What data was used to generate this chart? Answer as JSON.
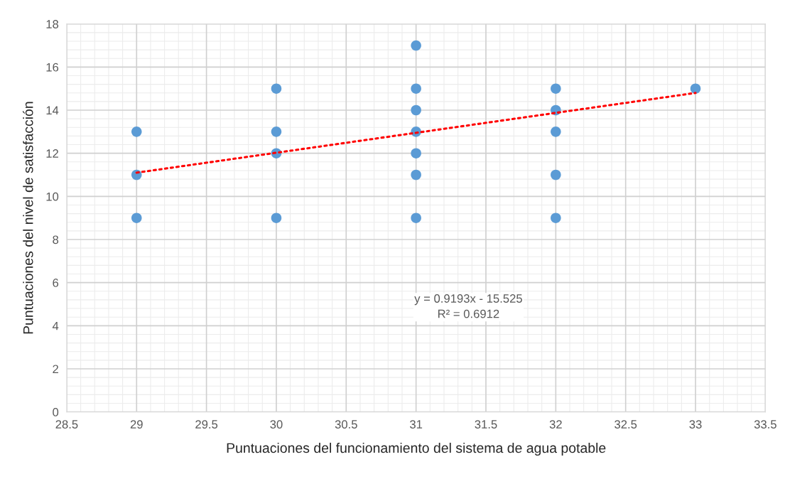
{
  "chart_data": {
    "type": "scatter",
    "xlabel": "Puntuaciones del funcionamiento del sistema de agua potable",
    "ylabel": "Puntuaciones del nivel de satisfacción",
    "series": [
      {
        "color": "#5b9bd5",
        "x": [
          29,
          29,
          29,
          30,
          30,
          30,
          30,
          31,
          31,
          31,
          31,
          31,
          31,
          31,
          32,
          32,
          32,
          32,
          32,
          33
        ],
        "values": [
          13,
          11,
          9,
          15,
          13,
          12,
          9,
          17,
          15,
          14,
          13,
          12,
          11,
          9,
          15,
          14,
          13,
          11,
          9,
          15
        ],
        "marker": "circle"
      },
      {
        "type": "line",
        "color": "#ff0000",
        "x": [
          29,
          33
        ],
        "values": [
          11.1,
          14.8
        ],
        "line_style": "dotted",
        "marker": "none"
      }
    ],
    "xlim": [
      28.5,
      33.5
    ],
    "xticks": [
      28.5,
      29,
      29.5,
      30,
      30.5,
      31,
      31.5,
      32,
      32.5,
      33,
      33.5
    ],
    "ylim": [
      0,
      18
    ],
    "yticks": [
      0,
      2,
      4,
      6,
      8,
      10,
      12,
      14,
      16,
      18
    ],
    "grid": true,
    "annotations": [
      "y = 0.9193x - 15.525\nR² = 0.6912"
    ]
  }
}
